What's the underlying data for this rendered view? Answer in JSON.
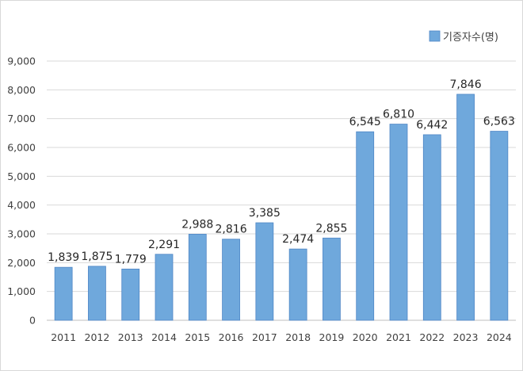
{
  "chart_data": {
    "type": "bar",
    "categories": [
      "2011",
      "2012",
      "2013",
      "2014",
      "2015",
      "2016",
      "2017",
      "2018",
      "2019",
      "2020",
      "2021",
      "2022",
      "2023",
      "2024"
    ],
    "series": [
      {
        "name": "기증자수(명)",
        "values": [
          1839,
          1875,
          1779,
          2291,
          2988,
          2816,
          3385,
          2474,
          2855,
          6545,
          6810,
          6442,
          7846,
          6563
        ],
        "color": "#6fa8dc"
      }
    ],
    "data_labels": [
      "1,839",
      "1,875",
      "1,779",
      "2,291",
      "2,988",
      "2,816",
      "3,385",
      "2,474",
      "2,855",
      "6,545",
      "6,810",
      "6,442",
      "7,846",
      "6,563"
    ],
    "y_ticks": [
      "0",
      "1,000",
      "2,000",
      "3,000",
      "4,000",
      "5,000",
      "6,000",
      "7,000",
      "8,000",
      "9,000"
    ],
    "ylim": [
      0,
      9000
    ],
    "y_step": 1000,
    "grid": true,
    "legend_position": "top-right",
    "bar_stroke_color": "#4f86c6",
    "title": "",
    "xlabel": "",
    "ylabel": ""
  }
}
